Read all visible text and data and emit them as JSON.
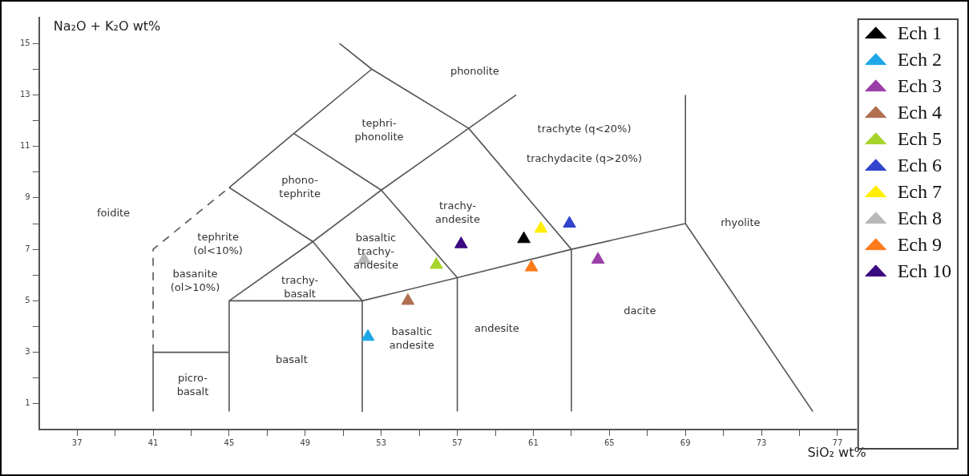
{
  "chart_data": {
    "type": "scatter",
    "xlabel": "SiO₂ wt%",
    "ylabel": "Na₂O + K₂O wt%",
    "xlim": [
      35,
      78
    ],
    "ylim": [
      0,
      16
    ],
    "xticks": [
      37,
      {
        "value": 39,
        "label": null
      },
      41,
      {
        "value": 43,
        "label": null
      },
      45,
      {
        "value": 47,
        "label": null
      },
      49,
      {
        "value": 51,
        "label": null
      },
      53,
      {
        "value": 55,
        "label": null
      },
      57,
      {
        "value": 59,
        "label": null
      },
      61,
      {
        "value": 63,
        "label": null
      },
      65,
      {
        "value": 67,
        "label": null
      },
      69,
      {
        "value": 71,
        "label": null
      },
      73,
      {
        "value": 75,
        "label": null
      },
      77
    ],
    "yticks": [
      1,
      {
        "value": 2,
        "label": null
      },
      3,
      {
        "value": 4,
        "label": null
      },
      5,
      {
        "value": 6,
        "label": null
      },
      7,
      {
        "value": 8,
        "label": null
      },
      9,
      {
        "value": 10,
        "label": null
      },
      11,
      {
        "value": 12,
        "label": null
      },
      13,
      {
        "value": 14,
        "label": null
      },
      15
    ],
    "grid": false,
    "legend": "right",
    "marker": "triangle",
    "series": [
      {
        "type": "line",
        "color": "#555555",
        "marker": "none",
        "x": [
          41,
          41
        ],
        "values": [
          0.7,
          3
        ]
      },
      {
        "type": "line",
        "color": "#555555",
        "marker": "none",
        "line_style": "dashed",
        "x": [
          41,
          41,
          45
        ],
        "values": [
          3,
          7,
          9.4
        ]
      },
      {
        "type": "line",
        "color": "#555555",
        "marker": "none",
        "x": [
          41,
          45
        ],
        "values": [
          3,
          3
        ]
      },
      {
        "type": "line",
        "color": "#555555",
        "marker": "none",
        "x": [
          45,
          45,
          52,
          52
        ],
        "values": [
          0.7,
          5,
          5,
          0.7
        ]
      },
      {
        "type": "line",
        "color": "#555555",
        "marker": "none",
        "x": [
          57,
          57
        ],
        "values": [
          0.7,
          5.9
        ]
      },
      {
        "type": "line",
        "color": "#555555",
        "marker": "none",
        "x": [
          63,
          63
        ],
        "values": [
          0.7,
          7
        ]
      },
      {
        "type": "line",
        "color": "#555555",
        "marker": "none",
        "x": [
          52,
          57,
          63,
          69,
          69
        ],
        "values": [
          5,
          5.9,
          7,
          8,
          13
        ]
      },
      {
        "type": "line",
        "color": "#555555",
        "marker": "none",
        "x": [
          69,
          75.7
        ],
        "values": [
          8,
          0.7
        ]
      },
      {
        "type": "line",
        "color": "#555555",
        "marker": "none",
        "x": [
          45,
          49.4,
          53,
          57.6,
          60.1
        ],
        "values": [
          5,
          7.3,
          9.3,
          11.7,
          13
        ]
      },
      {
        "type": "line",
        "color": "#555555",
        "marker": "none",
        "x": [
          45,
          48.4,
          52.5
        ],
        "values": [
          9.4,
          11.5,
          14
        ]
      },
      {
        "type": "line",
        "color": "#555555",
        "marker": "none",
        "x": [
          50.8,
          52.5,
          57.6,
          63
        ],
        "values": [
          15,
          14,
          11.7,
          7
        ]
      },
      {
        "type": "line",
        "color": "#555555",
        "marker": "none",
        "x": [
          45,
          49.4,
          52
        ],
        "values": [
          9.4,
          7.3,
          5
        ]
      },
      {
        "type": "line",
        "color": "#555555",
        "marker": "none",
        "x": [
          48.4,
          53,
          57
        ],
        "values": [
          11.5,
          9.3,
          5.9
        ]
      },
      {
        "name": "Ech 1",
        "color": "#000000",
        "x": [
          60.5
        ],
        "values": [
          7.4
        ]
      },
      {
        "name": "Ech 2",
        "color": "#1ea7e6",
        "x": [
          52.3
        ],
        "values": [
          3.6
        ]
      },
      {
        "name": "Ech 3",
        "color": "#9b3fa8",
        "x": [
          64.4
        ],
        "values": [
          6.6
        ]
      },
      {
        "name": "Ech 4",
        "color": "#b07050",
        "x": [
          54.4
        ],
        "values": [
          5.0
        ]
      },
      {
        "name": "Ech 5",
        "color": "#a6d42a",
        "x": [
          55.9
        ],
        "values": [
          6.4
        ]
      },
      {
        "name": "Ech 6",
        "color": "#3344cc",
        "x": [
          62.9
        ],
        "values": [
          8.0
        ]
      },
      {
        "name": "Ech 7",
        "color": "#ffee00",
        "x": [
          61.4
        ],
        "values": [
          7.8
        ]
      },
      {
        "name": "Ech 8",
        "color": "#b8b8b8",
        "x": [
          52.1
        ],
        "values": [
          6.6
        ]
      },
      {
        "name": "Ech 9",
        "color": "#ff7a1a",
        "x": [
          60.9
        ],
        "values": [
          6.3
        ]
      },
      {
        "name": "Ech 10",
        "color": "#3a0a80",
        "x": [
          57.2
        ],
        "values": [
          7.2
        ]
      }
    ],
    "annotations": [
      "phonolite",
      "tephri-\nphonolite",
      "phono-\ntephrite",
      "foidite",
      "tephrite\n(ol<10%)",
      "basanite\n(ol>10%)",
      "trachy-\nbasalt",
      "basaltic\ntrachy-\nandesite",
      "trachy-\nandesite",
      "trachyte (q<20%)",
      "trachydacite (q>20%)",
      "rhyolite",
      "dacite",
      "andesite",
      "basaltic\nandesite",
      "basalt",
      "picro-\nbasalt"
    ]
  }
}
